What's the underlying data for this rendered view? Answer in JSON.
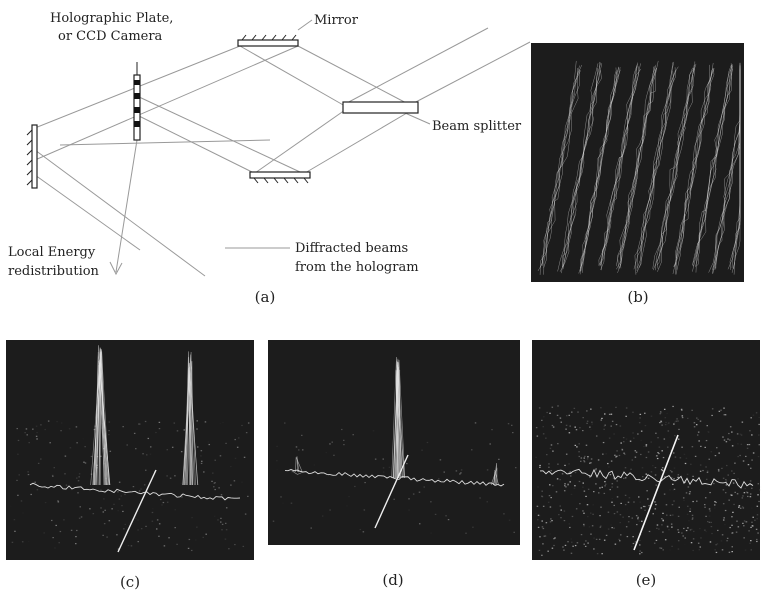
{
  "figure": {
    "panel_a": {
      "plate_label_1": "Holographic Plate,",
      "plate_label_2": "or CCD Camera",
      "mirror_label": "Mirror",
      "beam_splitter_label": "Beam splitter",
      "energy_label_1": "Local Energy",
      "energy_label_2": "redistribution",
      "diffracted_label_1": "Diffracted beams",
      "diffracted_label_2": "from the hologram",
      "caption": "(a)"
    },
    "captions": {
      "b": "(b)",
      "c": "(c)",
      "d": "(d)",
      "e": "(e)"
    }
  }
}
